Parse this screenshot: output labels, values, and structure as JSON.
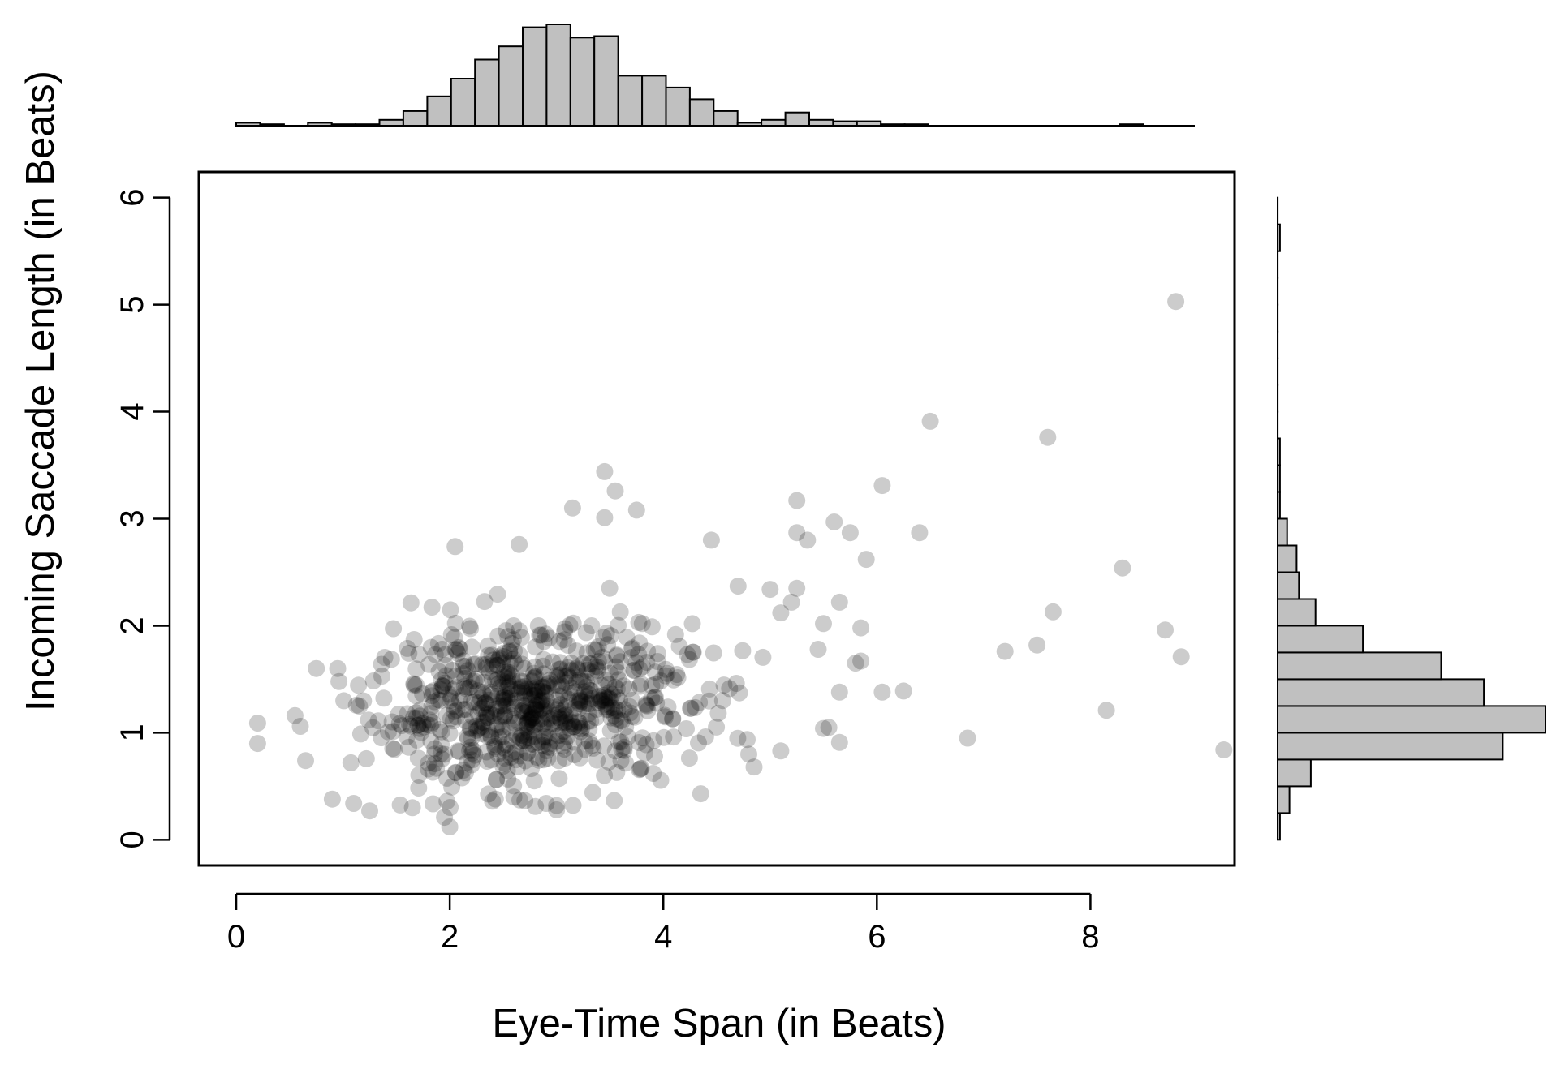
{
  "chart_data": {
    "type": "scatter",
    "title": "",
    "xlabel": "Eye-Time Span (in Beats)",
    "ylabel": "Incoming Saccade Length  (in Beats)",
    "xlim": [
      -0.35,
      9.35
    ],
    "ylim": [
      -0.24,
      6.24
    ],
    "x_ticks": [
      "0",
      "2",
      "4",
      "6",
      "8"
    ],
    "y_ticks": [
      "0",
      "1",
      "2",
      "3",
      "4",
      "5",
      "6"
    ],
    "grid": false,
    "legend": "none",
    "point_color": "#000000",
    "point_opacity": 0.2,
    "histogram_fill": "#c0c0c0",
    "marginal_x_histogram": {
      "bin_width": 0.2236,
      "bin_start": 0,
      "counts": [
        2,
        1,
        0,
        2,
        1,
        1,
        4,
        10,
        20,
        32,
        45,
        54,
        67,
        69,
        60,
        61,
        34,
        34,
        26,
        18,
        10,
        2,
        4,
        9,
        4,
        3,
        3,
        1,
        1,
        0,
        0,
        0,
        0,
        0,
        0,
        0,
        0,
        1,
        0,
        0,
        0,
        0,
        0,
        0,
        0,
        0,
        0,
        0,
        0,
        0,
        0,
        0,
        0,
        0,
        0,
        0,
        0,
        0,
        0,
        0,
        0,
        0
      ]
    },
    "marginal_y_histogram": {
      "bin_width": 0.25,
      "bin_start": 0,
      "counts": [
        1,
        5,
        14,
        95,
        113,
        87,
        69,
        36,
        16,
        9,
        8,
        4,
        1,
        1,
        1,
        0,
        0,
        0,
        0,
        0,
        0,
        0,
        1,
        0,
        0,
        0,
        0,
        0,
        0,
        0,
        0
      ]
    },
    "outliers": [
      {
        "x": 8.8,
        "y": 5.03
      },
      {
        "x": 6.5,
        "y": 3.91
      },
      {
        "x": 7.6,
        "y": 3.76
      },
      {
        "x": 6.05,
        "y": 3.31
      },
      {
        "x": 5.25,
        "y": 3.17
      },
      {
        "x": 6.4,
        "y": 2.87
      },
      {
        "x": 5.75,
        "y": 2.87
      },
      {
        "x": 5.6,
        "y": 2.97
      },
      {
        "x": 5.35,
        "y": 2.8
      },
      {
        "x": 5.25,
        "y": 2.87
      },
      {
        "x": 5.9,
        "y": 2.62
      },
      {
        "x": 8.3,
        "y": 2.54
      },
      {
        "x": 7.65,
        "y": 2.13
      },
      {
        "x": 5.65,
        "y": 2.22
      },
      {
        "x": 5.5,
        "y": 2.02
      },
      {
        "x": 5.85,
        "y": 1.98
      },
      {
        "x": 8.7,
        "y": 1.96
      },
      {
        "x": 7.2,
        "y": 1.76
      },
      {
        "x": 7.5,
        "y": 1.82
      },
      {
        "x": 8.85,
        "y": 1.71
      },
      {
        "x": 5.8,
        "y": 1.65
      },
      {
        "x": 5.85,
        "y": 1.67
      },
      {
        "x": 6.05,
        "y": 1.38
      },
      {
        "x": 6.25,
        "y": 1.39
      },
      {
        "x": 5.65,
        "y": 1.38
      },
      {
        "x": 5.55,
        "y": 1.05
      },
      {
        "x": 5.5,
        "y": 1.04
      },
      {
        "x": 8.15,
        "y": 1.21
      },
      {
        "x": 6.85,
        "y": 0.95
      },
      {
        "x": 9.25,
        "y": 0.84
      },
      {
        "x": 5.65,
        "y": 0.91
      },
      {
        "x": 5.1,
        "y": 0.83
      },
      {
        "x": 4.85,
        "y": 0.68
      },
      {
        "x": 4.8,
        "y": 0.8
      },
      {
        "x": 4.35,
        "y": 0.43
      },
      {
        "x": 4.7,
        "y": 2.37
      },
      {
        "x": 5.0,
        "y": 2.34
      },
      {
        "x": 5.25,
        "y": 2.35
      },
      {
        "x": 5.2,
        "y": 2.22
      },
      {
        "x": 5.1,
        "y": 2.12
      },
      {
        "x": 5.45,
        "y": 1.78
      },
      {
        "x": 4.45,
        "y": 2.8
      },
      {
        "x": 3.45,
        "y": 3.44
      },
      {
        "x": 3.55,
        "y": 3.26
      },
      {
        "x": 3.15,
        "y": 3.1
      },
      {
        "x": 3.45,
        "y": 3.01
      },
      {
        "x": 3.75,
        "y": 3.08
      },
      {
        "x": 0.2,
        "y": 1.09
      },
      {
        "x": 0.2,
        "y": 0.9
      },
      {
        "x": 0.55,
        "y": 1.16
      },
      {
        "x": 0.6,
        "y": 1.06
      },
      {
        "x": 0.75,
        "y": 1.6
      },
      {
        "x": 0.95,
        "y": 1.6
      },
      {
        "x": 0.65,
        "y": 0.74
      },
      {
        "x": 0.9,
        "y": 0.38
      },
      {
        "x": 1.1,
        "y": 0.34
      },
      {
        "x": 1.25,
        "y": 0.27
      },
      {
        "x": 1.95,
        "y": 0.21
      },
      {
        "x": 2.0,
        "y": 0.12
      },
      {
        "x": 3.0,
        "y": 0.28
      },
      {
        "x": 3.0,
        "y": 0.32
      },
      {
        "x": 2.05,
        "y": 2.74
      },
      {
        "x": 2.65,
        "y": 2.76
      },
      {
        "x": 1.65,
        "y": 0.3
      },
      {
        "x": 2.4,
        "y": 0.36
      },
      {
        "x": 2.6,
        "y": 0.4
      }
    ],
    "cluster": {
      "n": 740,
      "center_x": 2.75,
      "center_y": 1.25,
      "sd_x": 0.75,
      "sd_y": 0.42
    }
  }
}
